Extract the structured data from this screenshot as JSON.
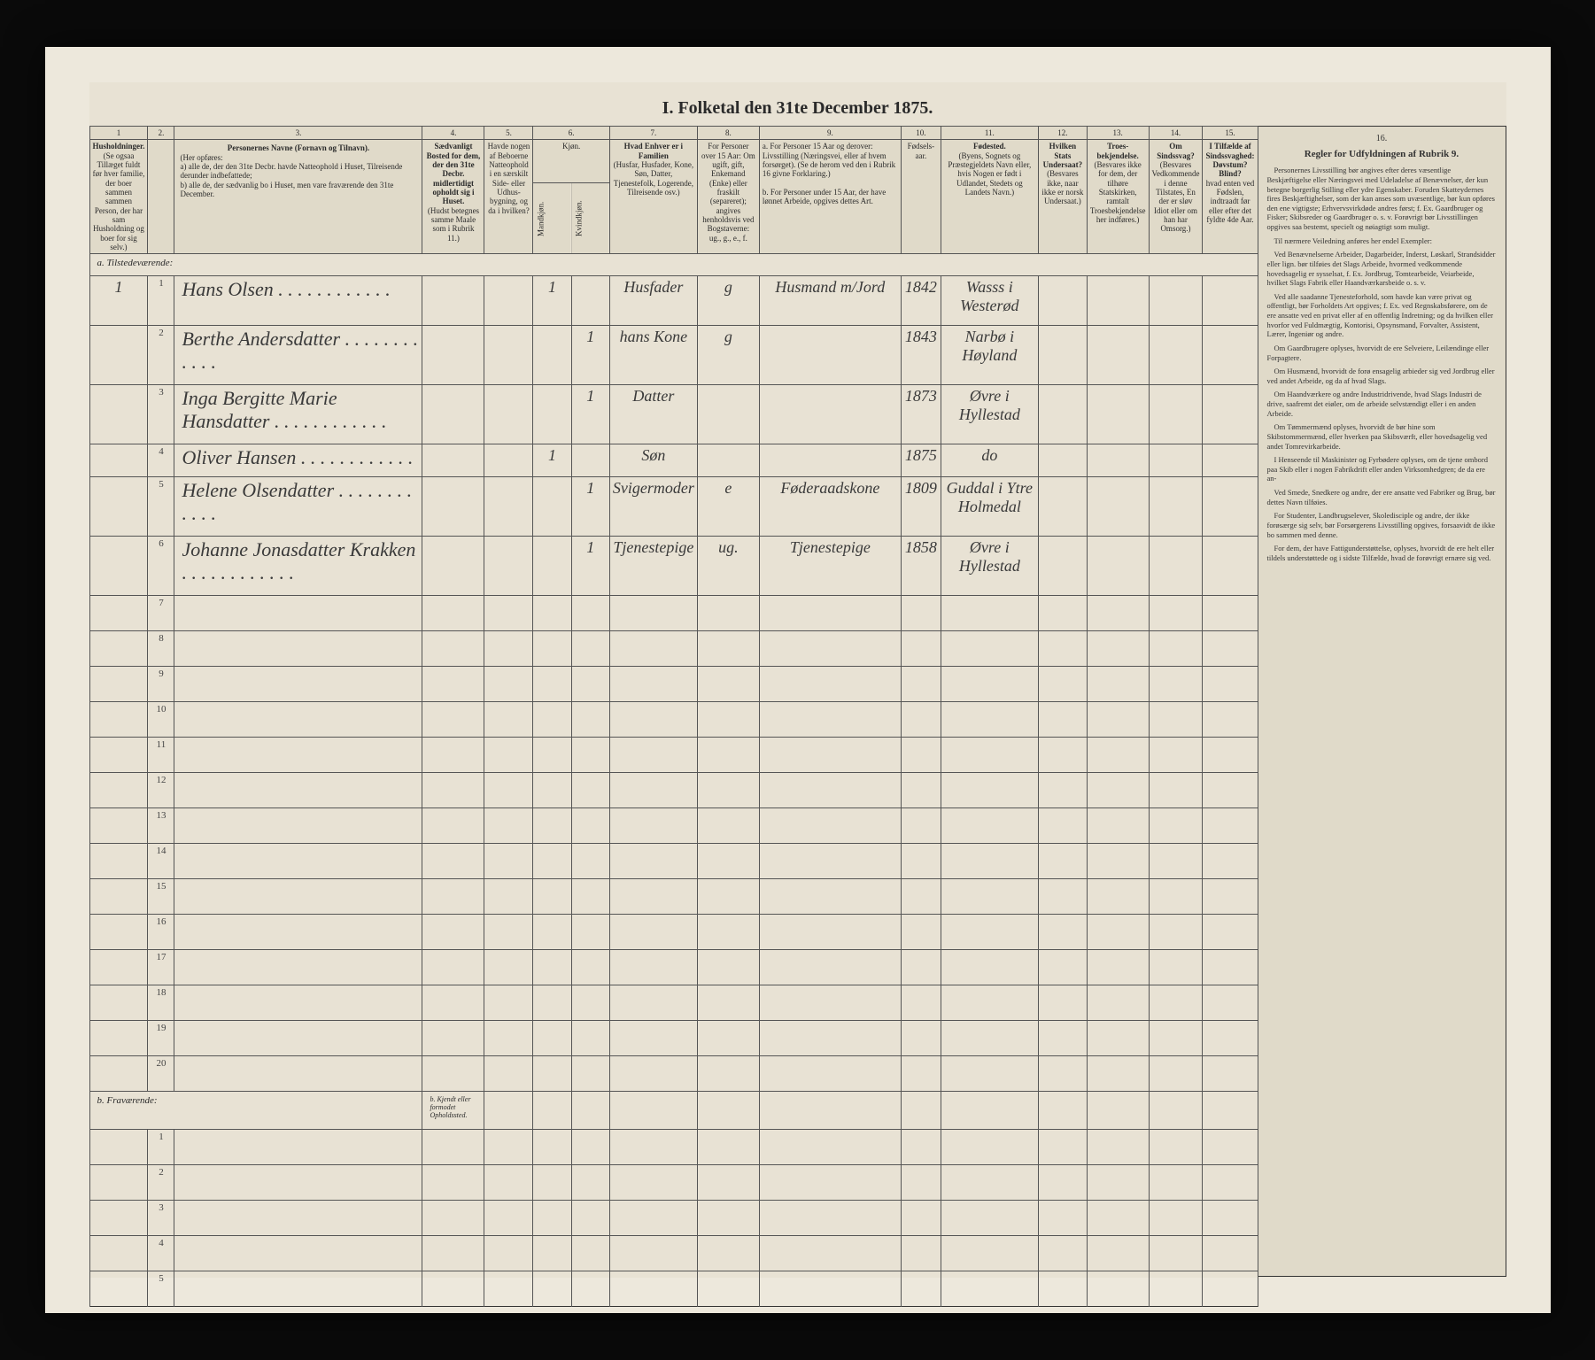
{
  "title": "I. Folketal den 31te December 1875.",
  "columns": {
    "nums": [
      "1",
      "2.",
      "3.",
      "4.",
      "5.",
      "6.",
      "7.",
      "8.",
      "9.",
      "10.",
      "11.",
      "12.",
      "13.",
      "14.",
      "15.",
      "16."
    ],
    "h1": "Husholdninger.",
    "h1b": "(Se ogsaa Tillæget fuldt før hver familie, der boer sammen sammen Person, der har sam Husholdning og boer for sig selv.)",
    "h3": "Personernes Navne (Fornavn og Tilnavn).",
    "h3a": "(Her opføres:",
    "h3b": "a) alle de, der den 31te Decbr. havde Natteophold i Huset, Tilreisende derunder indbefattede;",
    "h3c": "b) alle de, der sædvanlig bo i Huset, men vare fraværende den 31te December.",
    "h4": "Sædvanligt Bosted for dem, der den 31te Decbr. midlertidigt opholdt sig i Huset.",
    "h4b": "(Hudst betegnes samme Maale som i Rubrik 11.)",
    "h5": "Havde nogen af Beboerne Natteophold i en særskilt Side- eller Udhus-bygning, og da i hvilken?",
    "h6": "Kjøn.",
    "h6a": "Mandkjøn.",
    "h6b": "Kvindkjøn.",
    "h7": "Hvad Enhver er i Familien",
    "h7b": "(Husfar, Husfader, Kone, Søn, Datter, Tjenestefolk, Logerende, Tilreisende osv.)",
    "h8": "For Personer over 15 Aar: Om ugift, gift, Enkemand (Enke) eller fraskilt (separeret); angives henholdsvis ved Bogstaverne: ug., g., e., f.",
    "h9a": "a. For Personer 15 Aar og derover: Livsstilling (Næringsvei, eller af hvem forsørget). (Se de herom ved den i Rubrik 16 givne Forklaring.)",
    "h9b": "b. For Personer under 15 Aar, der have lønnet Arbeide, opgives dettes Art.",
    "h10": "Fødsels-aar.",
    "h11": "Fødested.",
    "h11b": "(Byens, Sognets og Præstegjeldets Navn eller, hvis Nogen er født i Udlandet, Stedets og Landets Navn.)",
    "h12": "Hvilken Stats Undersaat?",
    "h12b": "(Besvares ikke, naar ikke er norsk Undersaat.)",
    "h13": "Troes-bekjendelse.",
    "h13b": "(Besvares ikke for dem, der tilhøre Statskirken, ramtalt Troesbekjendelse her indføres.)",
    "h14": "Om Sindssvag?",
    "h14b": "(Besvares Vedkommende i denne Tilstates, En der er sløv Idiot eller om han har Omsorg.)",
    "h15": "I Tilfælde af Sindssvaghed: Døvstum? Blind?",
    "h15b": "hvad enten ved Fødslen, indtraadt før eller efter det fyldte 4de Aar.",
    "h16": "Regler for Udfyldningen af Rubrik 9."
  },
  "section_present": "a. Tilstedeværende:",
  "section_absent": "b. Fraværende:",
  "section_absent_note": "b. Kjendt eller formodet Opholdssted.",
  "rows": [
    {
      "n": "1",
      "p": "1",
      "name": "Hans Olsen",
      "c4": "",
      "c5": "",
      "m": "1",
      "k": "",
      "fam": "Husfader",
      "civ": "g",
      "liv": "Husmand m/Jord",
      "year": "1842",
      "place": "Wasss i Westerød"
    },
    {
      "n": "",
      "p": "2",
      "name": "Berthe Andersdatter",
      "c4": "",
      "c5": "",
      "m": "",
      "k": "1",
      "fam": "hans Kone",
      "civ": "g",
      "liv": "",
      "year": "1843",
      "place": "Narbø i Høyland"
    },
    {
      "n": "",
      "p": "3",
      "name": "Inga Bergitte Marie Hansdatter",
      "c4": "",
      "c5": "",
      "m": "",
      "k": "1",
      "fam": "Datter",
      "civ": "",
      "liv": "",
      "year": "1873",
      "place": "Øvre i Hyllestad"
    },
    {
      "n": "",
      "p": "4",
      "name": "Oliver Hansen",
      "c4": "",
      "c5": "",
      "m": "1",
      "k": "",
      "fam": "Søn",
      "civ": "",
      "liv": "",
      "year": "1875",
      "place": "do"
    },
    {
      "n": "",
      "p": "5",
      "name": "Helene Olsendatter",
      "c4": "",
      "c5": "",
      "m": "",
      "k": "1",
      "fam": "Svigermoder",
      "civ": "e",
      "liv": "Føderaadskone",
      "year": "1809",
      "place": "Guddal i Ytre Holmedal"
    },
    {
      "n": "",
      "p": "6",
      "name": "Johanne Jonasdatter Krakken",
      "c4": "",
      "c5": "",
      "m": "",
      "k": "1",
      "fam": "Tjenestepige",
      "civ": "ug.",
      "liv": "Tjenestepige",
      "year": "1858",
      "place": "Øvre i Hyllestad"
    }
  ],
  "empty_present": [
    "7",
    "8",
    "9",
    "10",
    "11",
    "12",
    "13",
    "14",
    "15",
    "16",
    "17",
    "18",
    "19",
    "20"
  ],
  "empty_absent": [
    "1",
    "2",
    "3",
    "4",
    "5"
  ],
  "side": {
    "intro": "Personernes Livsstilling bør angives efter deres væsentlige Beskjæftigelse eller Næringsvei med Udeladelse af Benævnelser, der kun betegne borgerlig Stilling eller ydre Egenskaber. Foruden Skatteydernes fires Beskjæftighelser, som der kan anses som uvæsentlige, bør kun opføres den ene vigtigste; Erhvervsvirkdøde andres først; f. Ex. Gaardbruger og Fisker; Skibsreder og Gaardbruger o. s. v. Forøvrigt bør Livsstillingen opgives saa bestemt, specielt og nøiagtigt som muligt.",
    "p1": "Til nærmere Veiledning anføres her endel Exempler:",
    "p2": "Ved Benævnelserne Arbeider, Dagarbeider, Inderst, Løskarl, Strandsidder eller lign. bør tilføies det Slags Arbeide, hvormed vedkommende hovedsagelig er sysselsat, f. Ex. Jordbrug, Tomtearbeide, Veiarbeide, hvilket Slags Fabrik eller Haandværkarsbeide o. s. v.",
    "p3": "Ved alle saadanne Tjenesteforhold, som havde kan være privat og offentligt, bør Forholdets Art opgives; f. Ex. ved Regnskabsførere, om de ere ansatte ved en privat eller af en offentlig Indretning; og da hvilken eller hvorfor ved Fuldmægtig, Kontorisi, Opsynsmand, Forvalter, Assistent, Lærer, Ingeniør og andre.",
    "p4": "Om Gaardbrugere oplyses, hvorvidt de ere Selveiere, Leilændinge eller Forpagtere.",
    "p5": "Om Husmænd, hvorvidt de forø ensagelig arbieder sig ved Jordbrug eller ved andet Arbeide, og da af hvad Slags.",
    "p6": "Om Haandværkere og andre Industridrivende, hvad Slags Industri de drive, saafremt det eiøler, om de arbeide selvstændigt eller i en anden Arbeide.",
    "p7": "Om Tømmermænd oplyses, hvorvidt de bør hine som Skibstommermænd, eller hverken paa Skibsværft, eller hovedsagelig ved andet Tomrevirkarbeide.",
    "p8": "I Henseende til Maskinister og Fyrbødere oplyses, om de tjene ombord paa Skib eller i nogen Fabrikdrift eller anden Virksomhedgren; de da ere an-",
    "p9": "Ved Smede, Snedkere og andre, der ere ansatte ved Fabriker og Brug, bør dettes Navn tilføies.",
    "p10": "For Studenter, Landbrugselever, Skoledisciple og andre, der ikke forøsærge sig selv, bør Forsørgerens Livsstilling opgives, forsaavidt de ikke bo sammen med denne.",
    "p11": "For dem, der have Fattigunderstøttelse, oplyses, hvorvidt de ere helt eller tildels understøttede og i sidste Tilfælde, hvad de forøvrigt ernære sig ved."
  }
}
